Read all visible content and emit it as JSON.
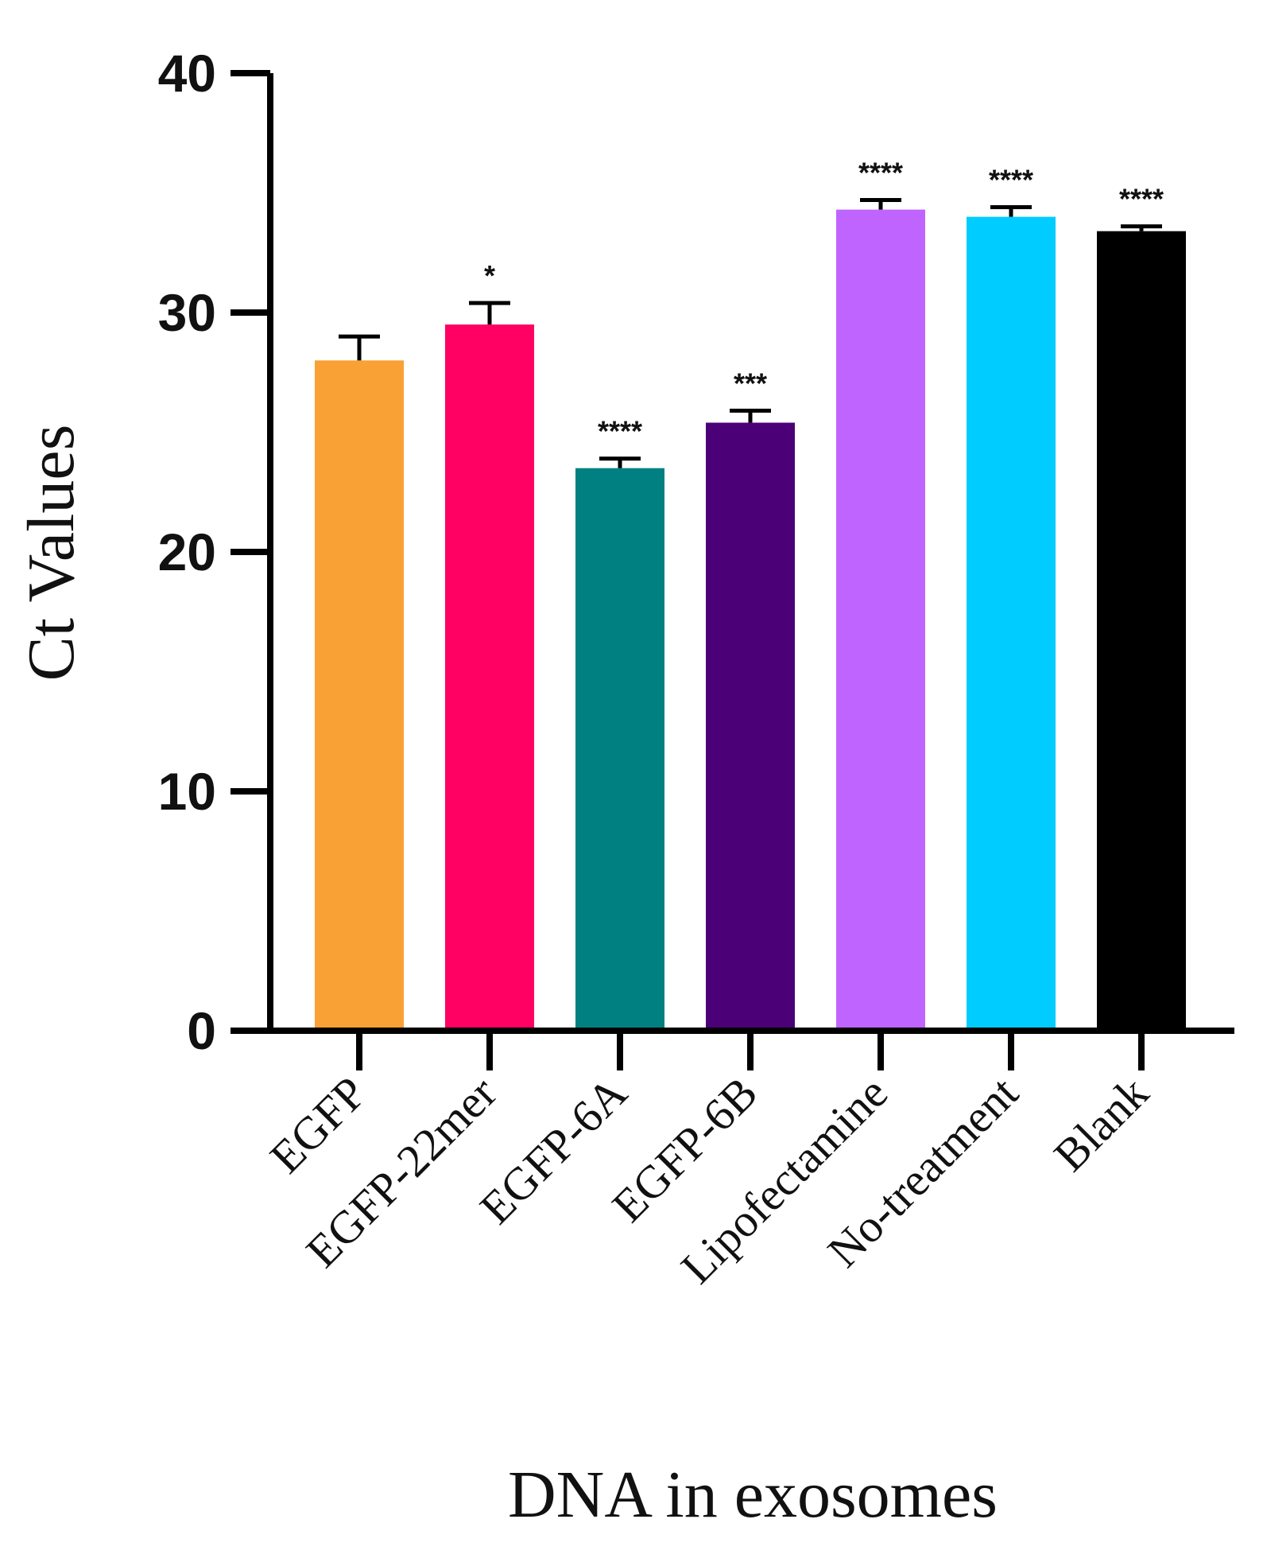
{
  "chart_data": {
    "type": "bar",
    "categories": [
      "EGFP",
      "EGFP-22mer",
      "EGFP-6A",
      "EGFP-6B",
      "Lipofectamine",
      "No-treatment",
      "Blank"
    ],
    "values": [
      28.0,
      29.5,
      23.5,
      25.4,
      34.3,
      34.0,
      33.4
    ],
    "error_upper": [
      29.0,
      30.4,
      23.9,
      25.9,
      34.7,
      34.4,
      33.6
    ],
    "significance": [
      "",
      "*",
      "****",
      "***",
      "****",
      "****",
      "****"
    ],
    "colors": [
      "#F9A135",
      "#FF0063",
      "#008080",
      "#4B0077",
      "#BF64FF",
      "#00CCFF",
      "#000000"
    ],
    "xlabel": "DNA in exosomes",
    "ylabel": "Ct Values",
    "ylim": [
      0,
      40
    ],
    "yticks": [
      "0",
      "10",
      "20",
      "30",
      "40"
    ],
    "grid": false,
    "legend": "none"
  }
}
